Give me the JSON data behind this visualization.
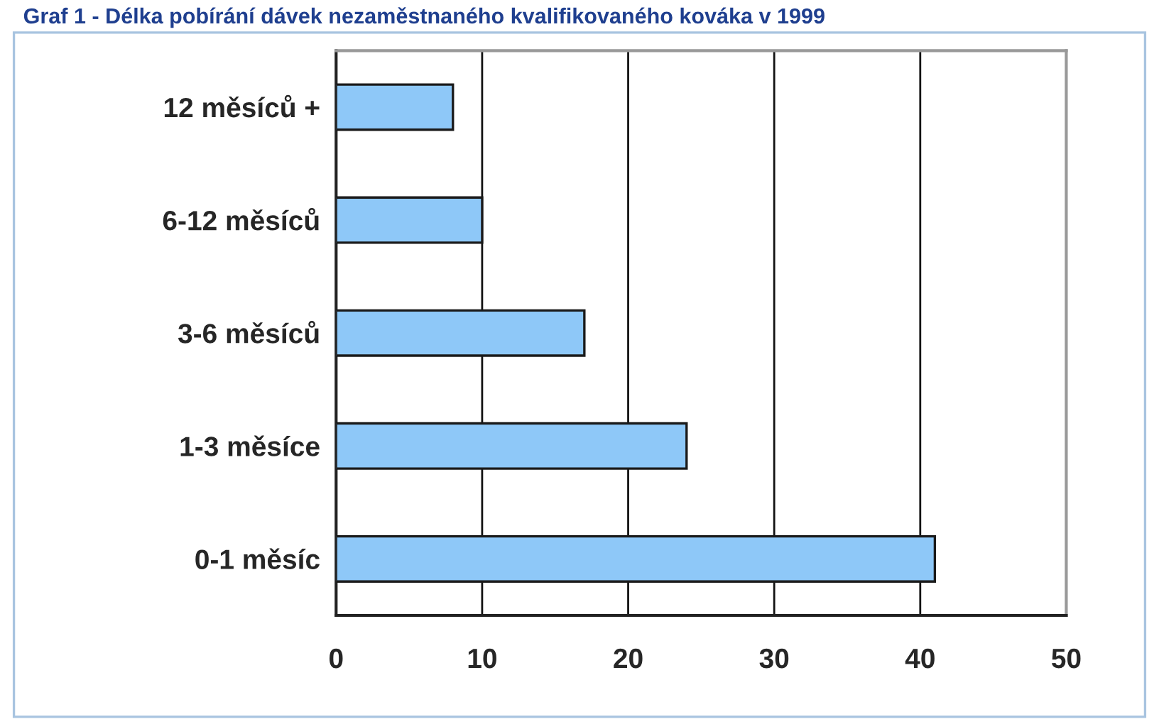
{
  "chart_data": {
    "type": "bar",
    "orientation": "horizontal",
    "title": "Graf 1 - Délka pobírání dávek nezaměstnaného kvalifikovaného kováka v 1999",
    "categories": [
      "12 měsíců +",
      "6-12 měsíců",
      "3-6 měsíců",
      "1-3 měsíce",
      "0-1 měsíc"
    ],
    "values": [
      8,
      10,
      17,
      24,
      41
    ],
    "color": "#8ec8f8",
    "xlim": [
      0,
      50
    ],
    "xticks": [
      0,
      10,
      20,
      30,
      40,
      50
    ],
    "grid": "x"
  }
}
